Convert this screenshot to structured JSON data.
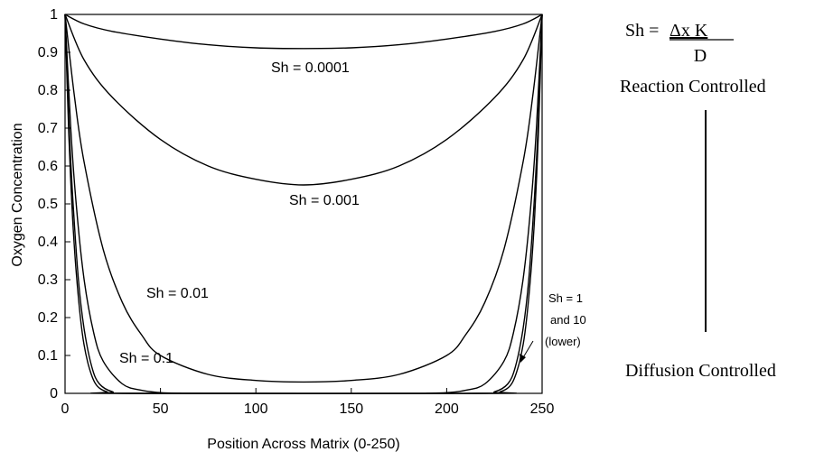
{
  "chart_data": {
    "type": "line",
    "xlabel": "Position Across Matrix (0-250)",
    "ylabel": "Oxygen Concentration",
    "xlim": [
      0,
      250
    ],
    "ylim": [
      0,
      1
    ],
    "xticks": [
      "0",
      "50",
      "100",
      "150",
      "200",
      "250"
    ],
    "yticks": [
      "0",
      "0.1",
      "0.2",
      "0.3",
      "0.4",
      "0.5",
      "0.6",
      "0.7",
      "0.8",
      "0.9",
      "1"
    ],
    "series": [
      {
        "name": "Sh = 0.0001",
        "x": [
          0,
          10,
          25,
          50,
          75,
          100,
          125,
          150,
          175,
          200,
          225,
          240,
          250
        ],
        "values": [
          1.0,
          0.975,
          0.955,
          0.935,
          0.92,
          0.912,
          0.91,
          0.912,
          0.92,
          0.935,
          0.955,
          0.975,
          1.0
        ]
      },
      {
        "name": "Sh = 0.001",
        "x": [
          0,
          10,
          25,
          50,
          75,
          100,
          125,
          150,
          175,
          200,
          225,
          240,
          250
        ],
        "values": [
          1.0,
          0.88,
          0.78,
          0.67,
          0.6,
          0.565,
          0.55,
          0.565,
          0.6,
          0.67,
          0.78,
          0.88,
          1.0
        ]
      },
      {
        "name": "Sh = 0.01",
        "x": [
          0,
          5,
          10,
          20,
          30,
          40,
          50,
          75,
          100,
          125,
          150,
          175,
          200,
          210,
          220,
          230,
          240,
          245,
          250
        ],
        "values": [
          1.0,
          0.78,
          0.61,
          0.38,
          0.24,
          0.155,
          0.1,
          0.05,
          0.034,
          0.03,
          0.034,
          0.05,
          0.1,
          0.155,
          0.24,
          0.38,
          0.61,
          0.78,
          1.0
        ]
      },
      {
        "name": "Sh = 0.1",
        "x": [
          0,
          3,
          6,
          10,
          15,
          20,
          30,
          40,
          50,
          60,
          75,
          175,
          190,
          200,
          210,
          220,
          230,
          235,
          240,
          244,
          247,
          250
        ],
        "values": [
          1.0,
          0.7,
          0.49,
          0.3,
          0.16,
          0.085,
          0.025,
          0.008,
          0.002,
          0.0005,
          0.0,
          0.0,
          0.0005,
          0.002,
          0.008,
          0.025,
          0.085,
          0.16,
          0.3,
          0.49,
          0.7,
          1.0
        ]
      },
      {
        "name": "Sh = 1",
        "x": [
          0,
          2,
          4,
          7,
          10,
          14,
          18,
          25,
          35,
          215,
          225,
          232,
          236,
          240,
          243,
          246,
          248,
          250
        ],
        "values": [
          1.0,
          0.72,
          0.52,
          0.3,
          0.17,
          0.07,
          0.025,
          0.004,
          0.0,
          0.0,
          0.004,
          0.025,
          0.07,
          0.17,
          0.3,
          0.52,
          0.72,
          1.0
        ]
      },
      {
        "name": "Sh = 10",
        "x": [
          0,
          2,
          4,
          6,
          9,
          12,
          16,
          22,
          30,
          220,
          228,
          234,
          238,
          241,
          244,
          246,
          248,
          250
        ],
        "values": [
          1.0,
          0.68,
          0.46,
          0.31,
          0.16,
          0.08,
          0.025,
          0.004,
          0.0,
          0.0,
          0.004,
          0.025,
          0.08,
          0.16,
          0.31,
          0.46,
          0.68,
          1.0
        ]
      }
    ],
    "curve_labels": [
      "Sh = 0.0001",
      "Sh = 0.001",
      "Sh = 0.01",
      "Sh = 0.1"
    ],
    "side_label": {
      "line1": "Sh = 1",
      "line2": "and 10",
      "line3": "(lower)"
    },
    "legend_placement": "right",
    "grid": false
  },
  "formula": {
    "lhs": "Sh = ",
    "numerator": "Δx K",
    "denominator": "D"
  },
  "annotations": {
    "top": "Reaction Controlled",
    "bottom": "Diffusion Controlled"
  }
}
